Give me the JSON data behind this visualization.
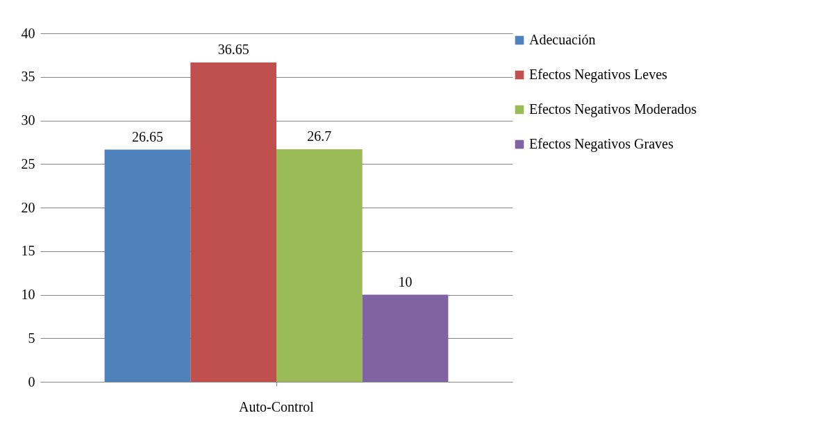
{
  "chart_data": {
    "type": "bar",
    "categories": [
      "Auto-Control"
    ],
    "series": [
      {
        "name": "Adecuación",
        "color": "#4f81bd",
        "values": [
          26.65
        ]
      },
      {
        "name": "Efectos Negativos Leves",
        "color": "#c0504d",
        "values": [
          36.65
        ]
      },
      {
        "name": "Efectos Negativos Moderados",
        "color": "#9bbb59",
        "values": [
          26.7
        ]
      },
      {
        "name": "Efectos Negativos Graves",
        "color": "#8064a2",
        "values": [
          10
        ]
      }
    ],
    "ylim": [
      0,
      40
    ],
    "yticks": [
      0,
      5,
      10,
      15,
      20,
      25,
      30,
      35,
      40
    ],
    "grid": "y",
    "legend": "right",
    "data_labels": true
  }
}
